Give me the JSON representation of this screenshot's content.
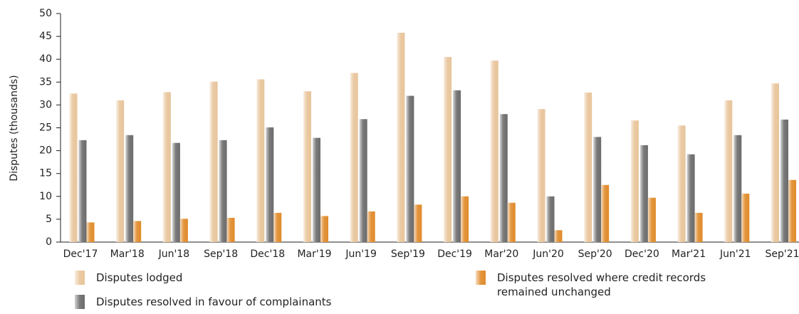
{
  "chart_data": {
    "type": "bar",
    "ylabel": "Disputes (thousands)",
    "categories": [
      "Dec'17",
      "Mar'18",
      "Jun'18",
      "Sep'18",
      "Dec'18",
      "Mar'19",
      "Jun'19",
      "Sep'19",
      "Dec'19",
      "Mar'20",
      "Jun'20",
      "Sep'20",
      "Dec'20",
      "Mar'21",
      "Jun'21",
      "Sep'21"
    ],
    "series": [
      {
        "name": "Disputes lodged",
        "color": "#e8c49a",
        "values": [
          32.5,
          31,
          32.8,
          35.1,
          35.6,
          33,
          37,
          45.8,
          40.5,
          39.7,
          29.1,
          32.7,
          26.6,
          25.5,
          31,
          34.7
        ]
      },
      {
        "name": "Disputes resolved in favour of complainants",
        "color": "#6b6b6b",
        "values": [
          22.3,
          23.4,
          21.7,
          22.3,
          25.1,
          22.8,
          26.9,
          32,
          33.2,
          28,
          10,
          23,
          21.2,
          19.2,
          23.4,
          26.8
        ]
      },
      {
        "name": "Disputes resolved where credit records remained unchanged",
        "color": "#e08a2a",
        "values": [
          4.3,
          4.6,
          5.1,
          5.3,
          6.4,
          5.7,
          6.7,
          8.2,
          10,
          8.6,
          2.6,
          12.5,
          9.7,
          6.4,
          10.6,
          13.6
        ]
      }
    ],
    "ylim": [
      0,
      50
    ],
    "yticks": [
      0,
      5,
      10,
      15,
      20,
      25,
      30,
      35,
      40,
      45,
      50
    ],
    "grid": false
  }
}
